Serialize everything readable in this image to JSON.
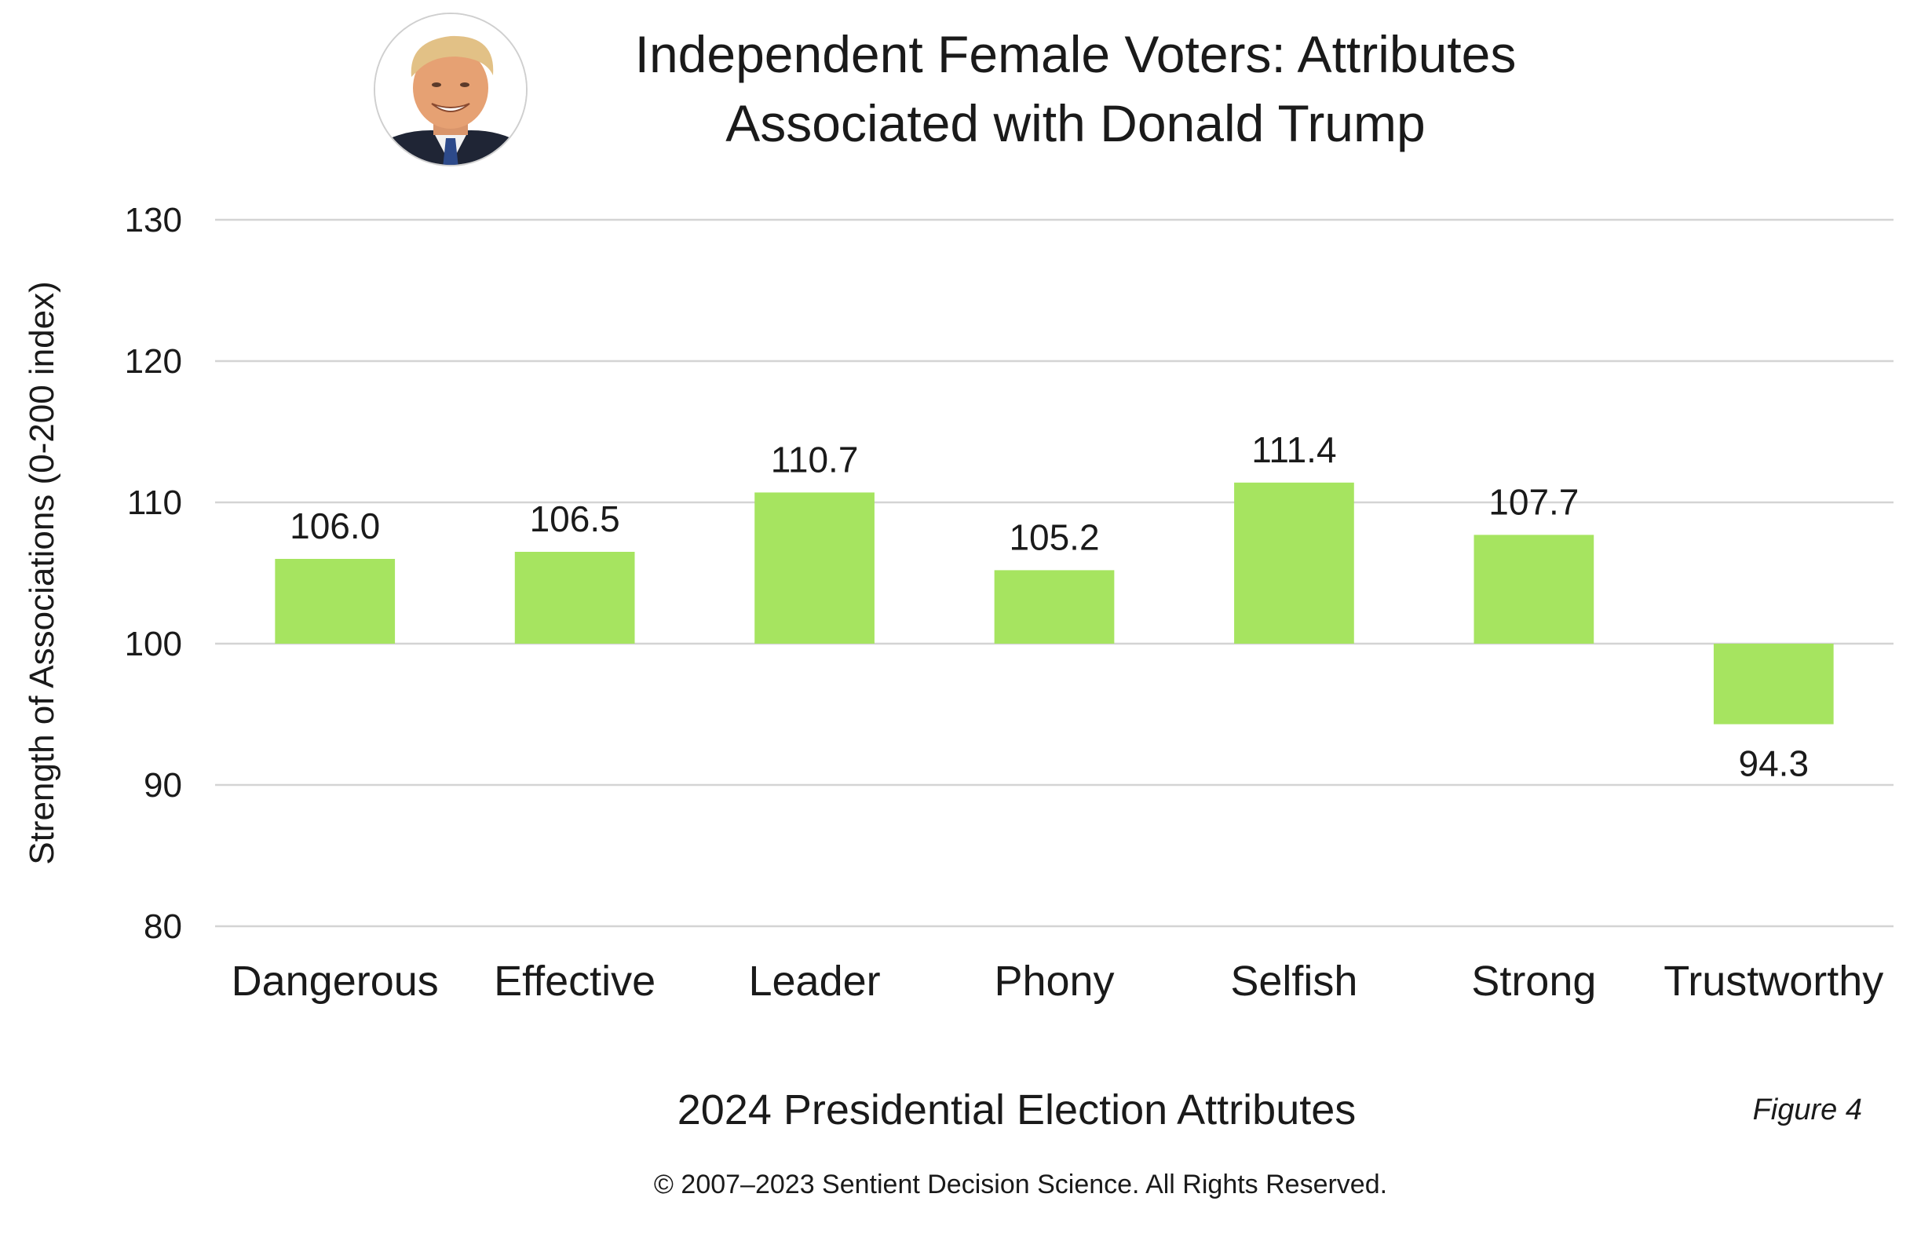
{
  "chart_data": {
    "type": "bar",
    "title_lines": [
      "Independent Female Voters: Attributes",
      "Associated with Donald Trump"
    ],
    "xlabel": "2024 Presidential Election Attributes",
    "ylabel": "Strength of Associations (0-200 index)",
    "baseline": 100,
    "ylim": [
      80,
      130
    ],
    "yticks": [
      "80",
      "90",
      "100",
      "110",
      "120",
      "130"
    ],
    "categories": [
      "Dangerous",
      "Effective",
      "Leader",
      "Phony",
      "Selfish",
      "Strong",
      "Trustworthy"
    ],
    "values": [
      106.0,
      106.5,
      110.7,
      105.2,
      111.4,
      107.7,
      94.3
    ],
    "value_labels": [
      "106.0",
      "106.5",
      "110.7",
      "105.2",
      "111.4",
      "107.7",
      "94.3"
    ],
    "grid": true,
    "legend": "none",
    "bar_color": "#a6e460",
    "grid_color": "#d4d4d4"
  },
  "figure_tag": "Figure 4",
  "copyright": "© 2007–2023 Sentient Decision Science. All Rights Reserved.",
  "portrait_icon": "candidate-portrait-icon"
}
